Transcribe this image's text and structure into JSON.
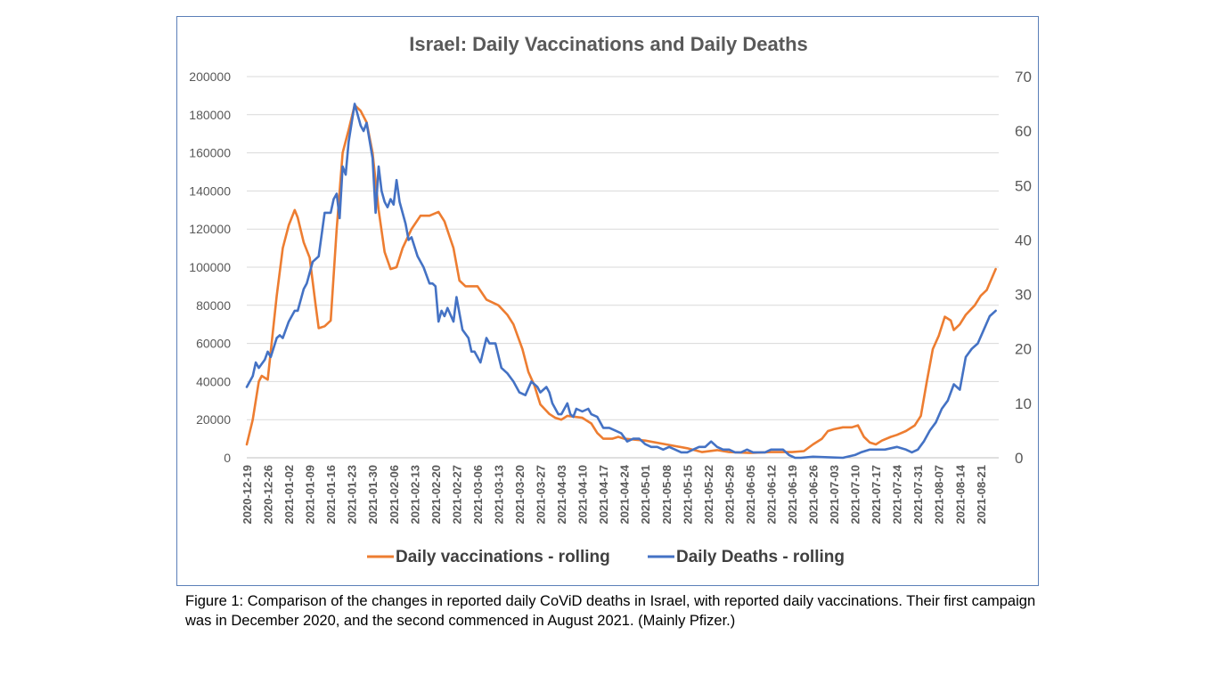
{
  "chart_data": {
    "type": "line",
    "title": "Israel: Daily Vaccinations and Daily Deaths",
    "x_tick_labels": [
      "2020-12-19",
      "2020-12-26",
      "2021-01-02",
      "2021-01-09",
      "2021-01-16",
      "2021-01-23",
      "2021-01-30",
      "2021-02-06",
      "2021-02-13",
      "2021-02-20",
      "2021-02-27",
      "2021-03-06",
      "2021-03-13",
      "2021-03-20",
      "2021-03-27",
      "2021-04-03",
      "2021-04-10",
      "2021-04-17",
      "2021-04-24",
      "2021-05-01",
      "2021-05-08",
      "2021-05-15",
      "2021-05-22",
      "2021-05-29",
      "2021-06-05",
      "2021-06-12",
      "2021-06-19",
      "2021-06-26",
      "2021-07-03",
      "2021-07-10",
      "2021-07-17",
      "2021-07-24",
      "2021-07-31",
      "2021-08-07",
      "2021-08-14",
      "2021-08-21"
    ],
    "y_left": {
      "ticks": [
        "0",
        "20000",
        "40000",
        "60000",
        "80000",
        "100000",
        "120000",
        "140000",
        "160000",
        "180000",
        "200000"
      ],
      "range": [
        0,
        200000
      ]
    },
    "y_right": {
      "ticks": [
        "0",
        "10",
        "20",
        "30",
        "40",
        "50",
        "60",
        "70"
      ],
      "range": [
        0,
        70
      ]
    },
    "grid": true,
    "legend_position": "bottom",
    "series": [
      {
        "name": "Daily vaccinations - rolling",
        "axis": "left",
        "color": "#ed7d31",
        "points": [
          [
            "2020-12-19",
            7000
          ],
          [
            "2020-12-21",
            20000
          ],
          [
            "2020-12-23",
            40000
          ],
          [
            "2020-12-24",
            43000
          ],
          [
            "2020-12-26",
            41000
          ],
          [
            "2020-12-29",
            85000
          ],
          [
            "2020-12-31",
            110000
          ],
          [
            "2021-01-02",
            122000
          ],
          [
            "2021-01-04",
            130000
          ],
          [
            "2021-01-05",
            126000
          ],
          [
            "2021-01-07",
            113000
          ],
          [
            "2021-01-09",
            105000
          ],
          [
            "2021-01-11",
            80000
          ],
          [
            "2021-01-12",
            68000
          ],
          [
            "2021-01-14",
            69000
          ],
          [
            "2021-01-16",
            72000
          ],
          [
            "2021-01-18",
            120000
          ],
          [
            "2021-01-20",
            160000
          ],
          [
            "2021-01-22",
            172000
          ],
          [
            "2021-01-24",
            185000
          ],
          [
            "2021-01-26",
            182000
          ],
          [
            "2021-01-28",
            176000
          ],
          [
            "2021-01-30",
            160000
          ],
          [
            "2021-02-01",
            130000
          ],
          [
            "2021-02-03",
            108000
          ],
          [
            "2021-02-05",
            99000
          ],
          [
            "2021-02-07",
            100000
          ],
          [
            "2021-02-09",
            110000
          ],
          [
            "2021-02-12",
            120000
          ],
          [
            "2021-02-15",
            127000
          ],
          [
            "2021-02-18",
            127000
          ],
          [
            "2021-02-21",
            129000
          ],
          [
            "2021-02-23",
            124000
          ],
          [
            "2021-02-26",
            110000
          ],
          [
            "2021-02-28",
            93000
          ],
          [
            "2021-03-02",
            90000
          ],
          [
            "2021-03-06",
            90000
          ],
          [
            "2021-03-09",
            83000
          ],
          [
            "2021-03-13",
            80000
          ],
          [
            "2021-03-16",
            75000
          ],
          [
            "2021-03-18",
            70000
          ],
          [
            "2021-03-21",
            57000
          ],
          [
            "2021-03-23",
            45000
          ],
          [
            "2021-03-25",
            38000
          ],
          [
            "2021-03-27",
            28000
          ],
          [
            "2021-03-30",
            23000
          ],
          [
            "2021-04-01",
            21000
          ],
          [
            "2021-04-03",
            20000
          ],
          [
            "2021-04-05",
            22000
          ],
          [
            "2021-04-10",
            21000
          ],
          [
            "2021-04-13",
            18000
          ],
          [
            "2021-04-15",
            13000
          ],
          [
            "2021-04-17",
            10000
          ],
          [
            "2021-04-20",
            10000
          ],
          [
            "2021-04-22",
            11000
          ],
          [
            "2021-04-24",
            10000
          ],
          [
            "2021-05-01",
            9000
          ],
          [
            "2021-05-08",
            7000
          ],
          [
            "2021-05-15",
            5000
          ],
          [
            "2021-05-20",
            3000
          ],
          [
            "2021-05-25",
            4000
          ],
          [
            "2021-05-29",
            3000
          ],
          [
            "2021-06-05",
            2500
          ],
          [
            "2021-06-12",
            3000
          ],
          [
            "2021-06-19",
            3000
          ],
          [
            "2021-06-23",
            3500
          ],
          [
            "2021-06-26",
            7000
          ],
          [
            "2021-06-29",
            10000
          ],
          [
            "2021-07-01",
            14000
          ],
          [
            "2021-07-03",
            15000
          ],
          [
            "2021-07-06",
            16000
          ],
          [
            "2021-07-09",
            16000
          ],
          [
            "2021-07-11",
            17000
          ],
          [
            "2021-07-13",
            11000
          ],
          [
            "2021-07-15",
            8000
          ],
          [
            "2021-07-17",
            7000
          ],
          [
            "2021-07-19",
            9000
          ],
          [
            "2021-07-22",
            11000
          ],
          [
            "2021-07-24",
            12000
          ],
          [
            "2021-07-27",
            14000
          ],
          [
            "2021-07-30",
            17000
          ],
          [
            "2021-08-01",
            22000
          ],
          [
            "2021-08-03",
            40000
          ],
          [
            "2021-08-05",
            57000
          ],
          [
            "2021-08-07",
            64000
          ],
          [
            "2021-08-09",
            74000
          ],
          [
            "2021-08-11",
            72000
          ],
          [
            "2021-08-12",
            67000
          ],
          [
            "2021-08-14",
            70000
          ],
          [
            "2021-08-16",
            75000
          ],
          [
            "2021-08-19",
            80000
          ],
          [
            "2021-08-21",
            85000
          ],
          [
            "2021-08-23",
            88000
          ],
          [
            "2021-08-26",
            99000
          ]
        ]
      },
      {
        "name": "Daily Deaths - rolling",
        "axis": "right",
        "color": "#4472c4",
        "points": [
          [
            "2020-12-19",
            13
          ],
          [
            "2020-12-21",
            15
          ],
          [
            "2020-12-22",
            17.5
          ],
          [
            "2020-12-23",
            16.5
          ],
          [
            "2020-12-25",
            18
          ],
          [
            "2020-12-26",
            19.5
          ],
          [
            "2020-12-27",
            18.5
          ],
          [
            "2020-12-29",
            22
          ],
          [
            "2020-12-30",
            22.5
          ],
          [
            "2020-12-31",
            22
          ],
          [
            "2021-01-02",
            25
          ],
          [
            "2021-01-04",
            27
          ],
          [
            "2021-01-05",
            27
          ],
          [
            "2021-01-07",
            31
          ],
          [
            "2021-01-08",
            32
          ],
          [
            "2021-01-10",
            36
          ],
          [
            "2021-01-12",
            37
          ],
          [
            "2021-01-14",
            45
          ],
          [
            "2021-01-15",
            45
          ],
          [
            "2021-01-16",
            45
          ],
          [
            "2021-01-17",
            47.5
          ],
          [
            "2021-01-18",
            48.5
          ],
          [
            "2021-01-19",
            44
          ],
          [
            "2021-01-20",
            53.5
          ],
          [
            "2021-01-21",
            52
          ],
          [
            "2021-01-22",
            58
          ],
          [
            "2021-01-24",
            65
          ],
          [
            "2021-01-26",
            61
          ],
          [
            "2021-01-27",
            60
          ],
          [
            "2021-01-28",
            61.5
          ],
          [
            "2021-01-30",
            55
          ],
          [
            "2021-01-31",
            45
          ],
          [
            "2021-02-01",
            53.5
          ],
          [
            "2021-02-02",
            49
          ],
          [
            "2021-02-03",
            47
          ],
          [
            "2021-02-04",
            46
          ],
          [
            "2021-02-05",
            47.5
          ],
          [
            "2021-02-06",
            46.5
          ],
          [
            "2021-02-07",
            51
          ],
          [
            "2021-02-08",
            47
          ],
          [
            "2021-02-10",
            43
          ],
          [
            "2021-02-11",
            40
          ],
          [
            "2021-02-12",
            40.5
          ],
          [
            "2021-02-14",
            37
          ],
          [
            "2021-02-16",
            35
          ],
          [
            "2021-02-18",
            32
          ],
          [
            "2021-02-19",
            32
          ],
          [
            "2021-02-20",
            31.5
          ],
          [
            "2021-02-21",
            25
          ],
          [
            "2021-02-22",
            27
          ],
          [
            "2021-02-23",
            26
          ],
          [
            "2021-02-24",
            27.5
          ],
          [
            "2021-02-26",
            25
          ],
          [
            "2021-02-27",
            29.5
          ],
          [
            "2021-03-01",
            23.5
          ],
          [
            "2021-03-03",
            22
          ],
          [
            "2021-03-04",
            19.5
          ],
          [
            "2021-03-05",
            19.5
          ],
          [
            "2021-03-07",
            17.5
          ],
          [
            "2021-03-09",
            22
          ],
          [
            "2021-03-10",
            21
          ],
          [
            "2021-03-12",
            21
          ],
          [
            "2021-03-14",
            16.5
          ],
          [
            "2021-03-16",
            15.5
          ],
          [
            "2021-03-18",
            14
          ],
          [
            "2021-03-20",
            12
          ],
          [
            "2021-03-22",
            11.5
          ],
          [
            "2021-03-24",
            14
          ],
          [
            "2021-03-26",
            13
          ],
          [
            "2021-03-27",
            12
          ],
          [
            "2021-03-29",
            13
          ],
          [
            "2021-03-30",
            12
          ],
          [
            "2021-03-31",
            10
          ],
          [
            "2021-04-02",
            8
          ],
          [
            "2021-04-03",
            8
          ],
          [
            "2021-04-05",
            10
          ],
          [
            "2021-04-06",
            8
          ],
          [
            "2021-04-07",
            7.5
          ],
          [
            "2021-04-08",
            9
          ],
          [
            "2021-04-10",
            8.5
          ],
          [
            "2021-04-12",
            9
          ],
          [
            "2021-04-13",
            8
          ],
          [
            "2021-04-15",
            7.5
          ],
          [
            "2021-04-17",
            5.5
          ],
          [
            "2021-04-19",
            5.5
          ],
          [
            "2021-04-21",
            5
          ],
          [
            "2021-04-23",
            4.5
          ],
          [
            "2021-04-25",
            3
          ],
          [
            "2021-04-27",
            3.5
          ],
          [
            "2021-04-29",
            3.5
          ],
          [
            "2021-05-01",
            2.5
          ],
          [
            "2021-05-03",
            2
          ],
          [
            "2021-05-05",
            2
          ],
          [
            "2021-05-07",
            1.5
          ],
          [
            "2021-05-09",
            2
          ],
          [
            "2021-05-11",
            1.5
          ],
          [
            "2021-05-13",
            1
          ],
          [
            "2021-05-15",
            1
          ],
          [
            "2021-05-17",
            1.5
          ],
          [
            "2021-05-19",
            2
          ],
          [
            "2021-05-21",
            2
          ],
          [
            "2021-05-23",
            3
          ],
          [
            "2021-05-25",
            2
          ],
          [
            "2021-05-27",
            1.5
          ],
          [
            "2021-05-29",
            1.5
          ],
          [
            "2021-05-31",
            1
          ],
          [
            "2021-06-02",
            1
          ],
          [
            "2021-06-04",
            1.5
          ],
          [
            "2021-06-06",
            1
          ],
          [
            "2021-06-08",
            1
          ],
          [
            "2021-06-10",
            1
          ],
          [
            "2021-06-12",
            1.5
          ],
          [
            "2021-06-14",
            1.5
          ],
          [
            "2021-06-16",
            1.5
          ],
          [
            "2021-06-18",
            0.5
          ],
          [
            "2021-06-20",
            0
          ],
          [
            "2021-06-22",
            0
          ],
          [
            "2021-06-26",
            0.2
          ],
          [
            "2021-07-01",
            0.1
          ],
          [
            "2021-07-06",
            0
          ],
          [
            "2021-07-10",
            0.5
          ],
          [
            "2021-07-12",
            1
          ],
          [
            "2021-07-15",
            1.5
          ],
          [
            "2021-07-20",
            1.5
          ],
          [
            "2021-07-24",
            2
          ],
          [
            "2021-07-27",
            1.5
          ],
          [
            "2021-07-29",
            1
          ],
          [
            "2021-07-31",
            1.5
          ],
          [
            "2021-08-02",
            3
          ],
          [
            "2021-08-04",
            5
          ],
          [
            "2021-08-06",
            6.5
          ],
          [
            "2021-08-08",
            9
          ],
          [
            "2021-08-10",
            10.5
          ],
          [
            "2021-08-12",
            13.5
          ],
          [
            "2021-08-14",
            12.5
          ],
          [
            "2021-08-16",
            18.5
          ],
          [
            "2021-08-18",
            20
          ],
          [
            "2021-08-20",
            21
          ],
          [
            "2021-08-22",
            23.5
          ],
          [
            "2021-08-24",
            26
          ],
          [
            "2021-08-26",
            27
          ]
        ]
      }
    ]
  },
  "caption": "Figure 1: Comparison of the changes in reported daily CoViD deaths in Israel, with reported daily vaccinations.  Their first campaign was in December 2020, and the second commenced in August 2021. (Mainly Pfizer.)"
}
